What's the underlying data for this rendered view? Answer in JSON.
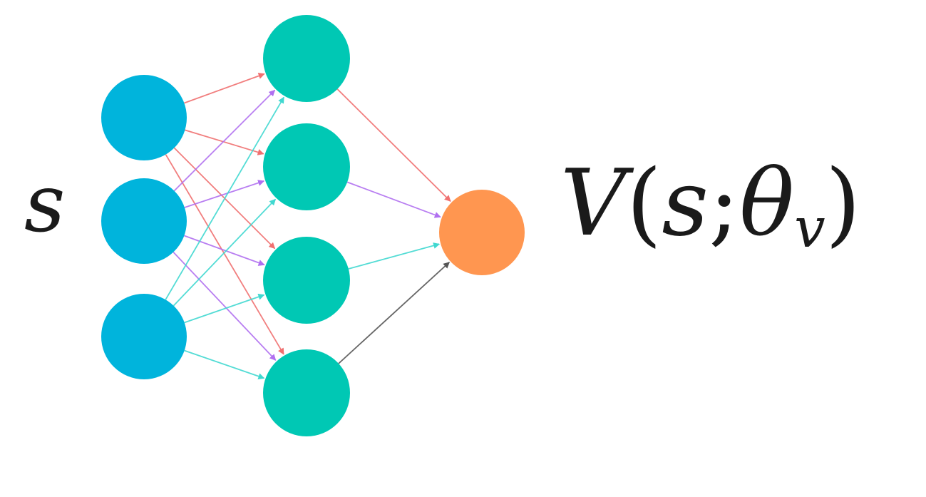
{
  "input_label": "s",
  "output_label": {
    "fn": "V",
    "open_paren": "(",
    "arg": "s",
    "sep": ";",
    "param": "θ",
    "param_sub": "v",
    "close_paren": ")"
  },
  "layers": [
    {
      "name": "input",
      "nodes": 3,
      "color": "#00B4DC"
    },
    {
      "name": "hidden",
      "nodes": 4,
      "color": "#00C8B4"
    },
    {
      "name": "output",
      "nodes": 1,
      "color": "#FF9650"
    }
  ],
  "edge_colors": {
    "from_input_1": "#F07070",
    "from_input_2": "#B070F0",
    "from_input_3": "#40D8D0",
    "to_output": [
      "#F07070",
      "#B070F0",
      "#40D8D0",
      "#555555"
    ]
  }
}
